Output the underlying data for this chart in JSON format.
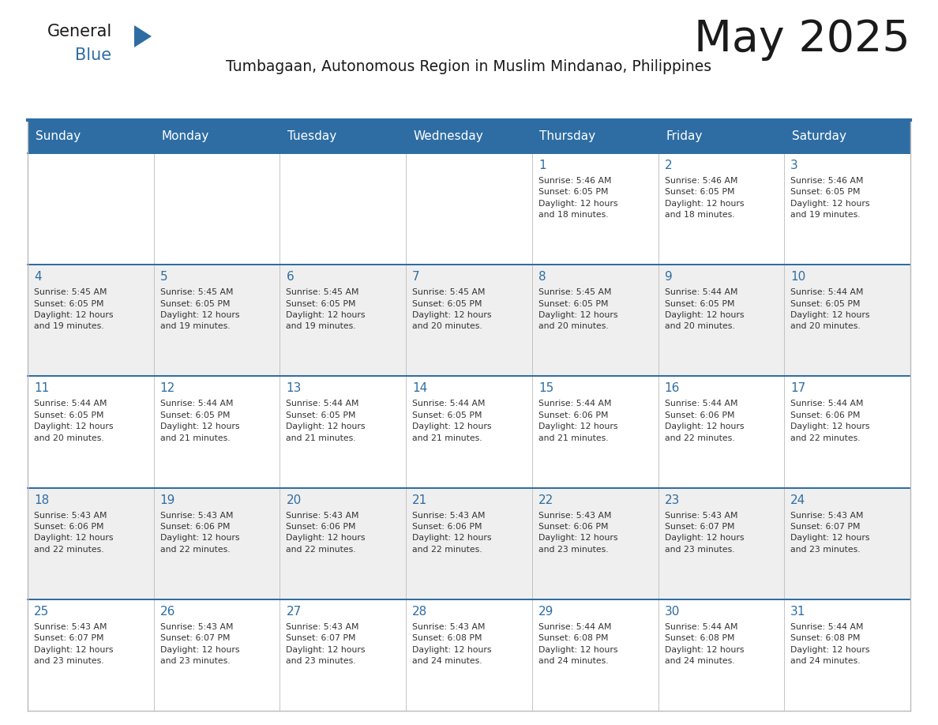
{
  "title": "May 2025",
  "subtitle": "Tumbagaan, Autonomous Region in Muslim Mindanao, Philippines",
  "header_color": "#2E6DA4",
  "header_text_color": "#FFFFFF",
  "day_names": [
    "Sunday",
    "Monday",
    "Tuesday",
    "Wednesday",
    "Thursday",
    "Friday",
    "Saturday"
  ],
  "bg_color": "#FFFFFF",
  "cell_bg_even": "#EFEFEF",
  "cell_bg_odd": "#FFFFFF",
  "date_color": "#2E6DA4",
  "text_color": "#333333",
  "grid_color": "#BBBBBB",
  "logo_general_color": "#1a1a1a",
  "logo_blue_color": "#2E6DA4",
  "weeks": [
    [
      {
        "day": 0,
        "info": ""
      },
      {
        "day": 0,
        "info": ""
      },
      {
        "day": 0,
        "info": ""
      },
      {
        "day": 0,
        "info": ""
      },
      {
        "day": 1,
        "info": "Sunrise: 5:46 AM\nSunset: 6:05 PM\nDaylight: 12 hours\nand 18 minutes."
      },
      {
        "day": 2,
        "info": "Sunrise: 5:46 AM\nSunset: 6:05 PM\nDaylight: 12 hours\nand 18 minutes."
      },
      {
        "day": 3,
        "info": "Sunrise: 5:46 AM\nSunset: 6:05 PM\nDaylight: 12 hours\nand 19 minutes."
      }
    ],
    [
      {
        "day": 4,
        "info": "Sunrise: 5:45 AM\nSunset: 6:05 PM\nDaylight: 12 hours\nand 19 minutes."
      },
      {
        "day": 5,
        "info": "Sunrise: 5:45 AM\nSunset: 6:05 PM\nDaylight: 12 hours\nand 19 minutes."
      },
      {
        "day": 6,
        "info": "Sunrise: 5:45 AM\nSunset: 6:05 PM\nDaylight: 12 hours\nand 19 minutes."
      },
      {
        "day": 7,
        "info": "Sunrise: 5:45 AM\nSunset: 6:05 PM\nDaylight: 12 hours\nand 20 minutes."
      },
      {
        "day": 8,
        "info": "Sunrise: 5:45 AM\nSunset: 6:05 PM\nDaylight: 12 hours\nand 20 minutes."
      },
      {
        "day": 9,
        "info": "Sunrise: 5:44 AM\nSunset: 6:05 PM\nDaylight: 12 hours\nand 20 minutes."
      },
      {
        "day": 10,
        "info": "Sunrise: 5:44 AM\nSunset: 6:05 PM\nDaylight: 12 hours\nand 20 minutes."
      }
    ],
    [
      {
        "day": 11,
        "info": "Sunrise: 5:44 AM\nSunset: 6:05 PM\nDaylight: 12 hours\nand 20 minutes."
      },
      {
        "day": 12,
        "info": "Sunrise: 5:44 AM\nSunset: 6:05 PM\nDaylight: 12 hours\nand 21 minutes."
      },
      {
        "day": 13,
        "info": "Sunrise: 5:44 AM\nSunset: 6:05 PM\nDaylight: 12 hours\nand 21 minutes."
      },
      {
        "day": 14,
        "info": "Sunrise: 5:44 AM\nSunset: 6:05 PM\nDaylight: 12 hours\nand 21 minutes."
      },
      {
        "day": 15,
        "info": "Sunrise: 5:44 AM\nSunset: 6:06 PM\nDaylight: 12 hours\nand 21 minutes."
      },
      {
        "day": 16,
        "info": "Sunrise: 5:44 AM\nSunset: 6:06 PM\nDaylight: 12 hours\nand 22 minutes."
      },
      {
        "day": 17,
        "info": "Sunrise: 5:44 AM\nSunset: 6:06 PM\nDaylight: 12 hours\nand 22 minutes."
      }
    ],
    [
      {
        "day": 18,
        "info": "Sunrise: 5:43 AM\nSunset: 6:06 PM\nDaylight: 12 hours\nand 22 minutes."
      },
      {
        "day": 19,
        "info": "Sunrise: 5:43 AM\nSunset: 6:06 PM\nDaylight: 12 hours\nand 22 minutes."
      },
      {
        "day": 20,
        "info": "Sunrise: 5:43 AM\nSunset: 6:06 PM\nDaylight: 12 hours\nand 22 minutes."
      },
      {
        "day": 21,
        "info": "Sunrise: 5:43 AM\nSunset: 6:06 PM\nDaylight: 12 hours\nand 22 minutes."
      },
      {
        "day": 22,
        "info": "Sunrise: 5:43 AM\nSunset: 6:06 PM\nDaylight: 12 hours\nand 23 minutes."
      },
      {
        "day": 23,
        "info": "Sunrise: 5:43 AM\nSunset: 6:07 PM\nDaylight: 12 hours\nand 23 minutes."
      },
      {
        "day": 24,
        "info": "Sunrise: 5:43 AM\nSunset: 6:07 PM\nDaylight: 12 hours\nand 23 minutes."
      }
    ],
    [
      {
        "day": 25,
        "info": "Sunrise: 5:43 AM\nSunset: 6:07 PM\nDaylight: 12 hours\nand 23 minutes."
      },
      {
        "day": 26,
        "info": "Sunrise: 5:43 AM\nSunset: 6:07 PM\nDaylight: 12 hours\nand 23 minutes."
      },
      {
        "day": 27,
        "info": "Sunrise: 5:43 AM\nSunset: 6:07 PM\nDaylight: 12 hours\nand 23 minutes."
      },
      {
        "day": 28,
        "info": "Sunrise: 5:43 AM\nSunset: 6:08 PM\nDaylight: 12 hours\nand 24 minutes."
      },
      {
        "day": 29,
        "info": "Sunrise: 5:44 AM\nSunset: 6:08 PM\nDaylight: 12 hours\nand 24 minutes."
      },
      {
        "day": 30,
        "info": "Sunrise: 5:44 AM\nSunset: 6:08 PM\nDaylight: 12 hours\nand 24 minutes."
      },
      {
        "day": 31,
        "info": "Sunrise: 5:44 AM\nSunset: 6:08 PM\nDaylight: 12 hours\nand 24 minutes."
      }
    ]
  ]
}
